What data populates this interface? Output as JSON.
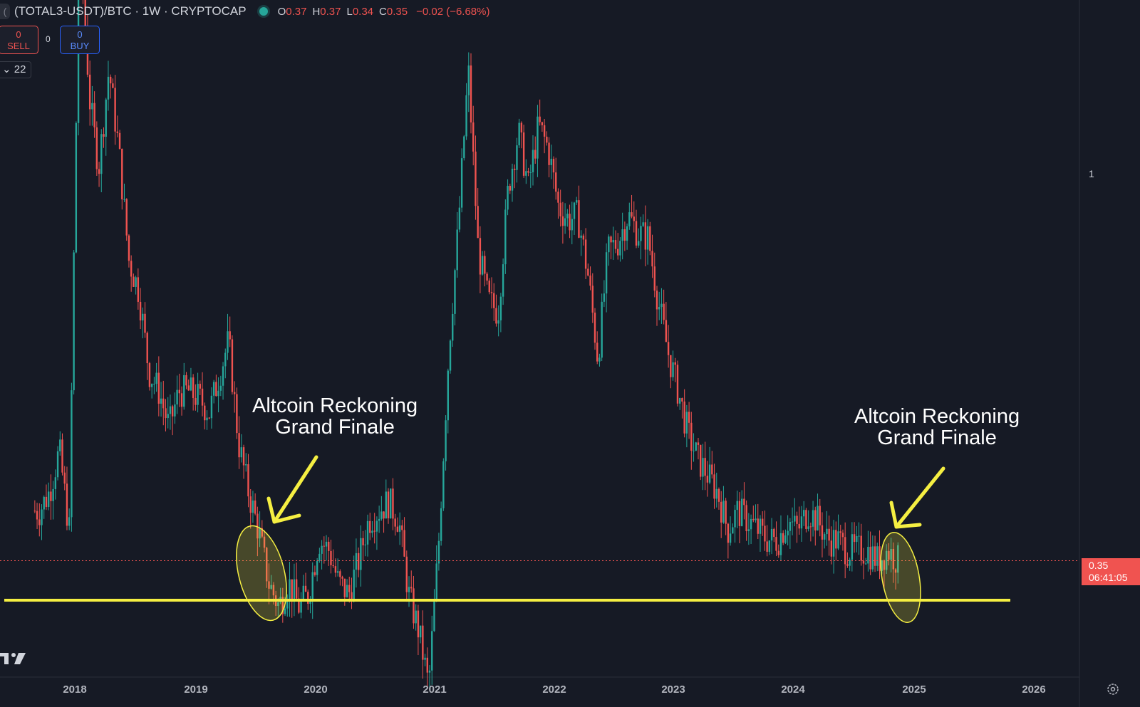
{
  "header": {
    "symbol": "(TOTAL3-USDT)/BTC · 1W · CRYPTOCAP",
    "ohlc": {
      "o_label": "O",
      "o": "0.37",
      "h_label": "H",
      "h": "0.37",
      "l_label": "L",
      "l": "0.34",
      "c_label": "C",
      "c": "0.35"
    },
    "change": "−0.02 (−6.68%)"
  },
  "trade": {
    "sell_count": "0",
    "sell_label": "SELL",
    "buy_count": "0",
    "buy_label": "BUY",
    "spread": "0"
  },
  "indicator_toggle": "22",
  "price_scale": {
    "tick": "1",
    "last_price": "0.35",
    "countdown": "06:41:05"
  },
  "annotations": [
    {
      "line1": "Altcoin Reckoning",
      "line2": "Grand Finale"
    },
    {
      "line1": "Altcoin Reckoning",
      "line2": "Grand Finale"
    }
  ],
  "colors": {
    "background": "#161a25",
    "up": "#26a69a",
    "down": "#ef5350",
    "support": "#f5ef42",
    "annotation": "#f5ef42"
  },
  "chart_data": {
    "type": "line",
    "style": "weekly candlesticks",
    "y_scale": "log",
    "x_tick_labels": [
      "2018",
      "2019",
      "2020",
      "2021",
      "2022",
      "2023",
      "2024",
      "2025",
      "2026"
    ],
    "y_tick_labels": [
      "1"
    ],
    "series": [
      {
        "x": [
          "2017-09",
          "2017-10",
          "2017-11",
          "2017-12",
          "2018-01",
          "2018-02",
          "2018-03",
          "2018-04",
          "2018-05",
          "2018-06",
          "2018-07",
          "2018-08",
          "2018-09",
          "2018-10",
          "2018-11",
          "2018-12",
          "2019-01",
          "2019-02",
          "2019-03",
          "2019-04",
          "2019-05",
          "2019-06",
          "2019-07",
          "2019-08",
          "2019-09",
          "2019-10",
          "2019-11",
          "2019-12",
          "2020-01",
          "2020-02",
          "2020-03",
          "2020-04",
          "2020-05",
          "2020-06",
          "2020-07",
          "2020-08",
          "2020-09",
          "2020-10",
          "2020-11",
          "2020-12",
          "2021-01",
          "2021-02",
          "2021-03",
          "2021-04",
          "2021-05",
          "2021-06",
          "2021-07",
          "2021-08",
          "2021-09",
          "2021-10",
          "2021-11",
          "2021-12",
          "2022-01",
          "2022-02",
          "2022-03",
          "2022-04",
          "2022-05",
          "2022-06",
          "2022-07",
          "2022-08",
          "2022-09",
          "2022-10",
          "2022-11",
          "2022-12",
          "2023-01",
          "2023-02",
          "2023-03",
          "2023-04",
          "2023-05",
          "2023-06",
          "2023-07",
          "2023-08",
          "2023-09",
          "2023-10",
          "2023-11",
          "2023-12",
          "2024-01",
          "2024-02",
          "2024-03",
          "2024-04",
          "2024-05",
          "2024-06",
          "2024-07",
          "2024-08",
          "2024-09",
          "2024-10",
          "2024-11"
        ],
        "y": [
          0.4,
          0.42,
          0.47,
          0.38,
          1.9,
          1.2,
          1.0,
          1.3,
          1.05,
          0.78,
          0.72,
          0.58,
          0.55,
          0.5,
          0.55,
          0.55,
          0.54,
          0.52,
          0.57,
          0.63,
          0.48,
          0.42,
          0.38,
          0.33,
          0.31,
          0.33,
          0.31,
          0.32,
          0.37,
          0.36,
          0.33,
          0.32,
          0.35,
          0.39,
          0.4,
          0.41,
          0.39,
          0.32,
          0.29,
          0.25,
          0.37,
          0.62,
          0.85,
          1.3,
          0.8,
          0.7,
          0.68,
          0.95,
          1.1,
          0.95,
          1.12,
          1.05,
          0.9,
          0.87,
          0.88,
          0.75,
          0.6,
          0.8,
          0.82,
          0.88,
          0.84,
          0.83,
          0.7,
          0.61,
          0.55,
          0.49,
          0.46,
          0.44,
          0.42,
          0.38,
          0.4,
          0.39,
          0.38,
          0.37,
          0.37,
          0.39,
          0.38,
          0.4,
          0.39,
          0.37,
          0.37,
          0.36,
          0.36,
          0.36,
          0.35,
          0.36,
          0.35
        ]
      }
    ],
    "last_price": 0.35,
    "support_level": 0.315,
    "grid": false
  }
}
